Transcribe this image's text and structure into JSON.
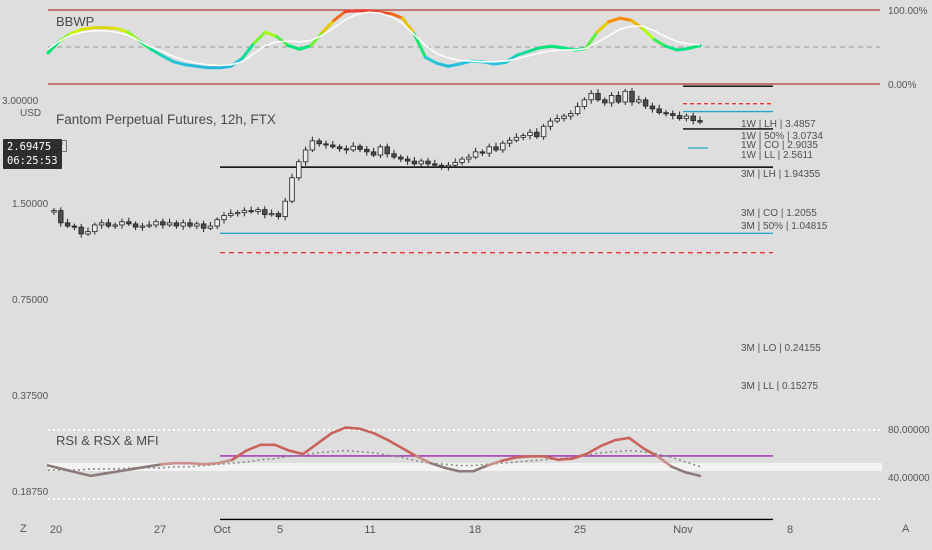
{
  "bbwp": {
    "title": "BBWP",
    "levels": [
      "100.00%",
      "0.00%"
    ]
  },
  "main": {
    "title": "Fantom Perpetual Futures, 12h, FTX",
    "currency": "USD",
    "last_price": "2.69475",
    "countdown": "06:25:53",
    "y_ticks": [
      "3.00000",
      "1.50000",
      "0.75000",
      "0.37500",
      "0.18750"
    ]
  },
  "osc": {
    "title": "RSI & RSX & MFI",
    "levels": [
      "80.00000",
      "40.00000"
    ]
  },
  "x_axis": {
    "labels": [
      "20",
      "27",
      "Oct",
      "5",
      "11",
      "18",
      "25",
      "Nov",
      "8"
    ]
  },
  "corner": {
    "left": "Z",
    "right": "A"
  },
  "level_labels": [
    {
      "text": "1W | LH | 3.4857",
      "color": "#000000"
    },
    {
      "text": "1W | 50% | 3.0734",
      "color": "#e53935"
    },
    {
      "text": "1W | CO | 2.9035",
      "color": "#26a6c9"
    },
    {
      "text": "1W | LL | 2.5611",
      "color": "#000000"
    },
    {
      "text": "3M | LH | 1.94355",
      "color": "#000000"
    },
    {
      "text": "3M | CO | 1.2055",
      "color": "#26a6c9"
    },
    {
      "text": "3M | 50% | 1.04815",
      "color": "#e53935"
    },
    {
      "text": "3M | LO | 0.24155",
      "color": "#9c27b0"
    },
    {
      "text": "3M | LL | 0.15275",
      "color": "#000000"
    }
  ],
  "chart_data": {
    "type": "candlestick",
    "title": "Fantom Perpetual Futures, 12h, FTX",
    "y_scale": "log",
    "y_ticks": [
      3.0,
      1.5,
      0.75,
      0.375,
      0.1875
    ],
    "x_labels": [
      "20",
      "27",
      "Oct",
      "5",
      "11",
      "18",
      "25",
      "Nov",
      "8"
    ],
    "close": [
      1.42,
      1.3,
      1.27,
      1.26,
      1.2,
      1.22,
      1.28,
      1.3,
      1.27,
      1.28,
      1.31,
      1.29,
      1.26,
      1.27,
      1.28,
      1.31,
      1.28,
      1.3,
      1.27,
      1.3,
      1.27,
      1.29,
      1.25,
      1.27,
      1.33,
      1.37,
      1.39,
      1.4,
      1.42,
      1.41,
      1.43,
      1.38,
      1.39,
      1.36,
      1.52,
      1.8,
      2.02,
      2.2,
      2.35,
      2.3,
      2.28,
      2.25,
      2.22,
      2.2,
      2.26,
      2.21,
      2.17,
      2.12,
      2.25,
      2.14,
      2.09,
      2.06,
      2.03,
      1.99,
      2.03,
      1.99,
      1.97,
      1.95,
      1.97,
      2.01,
      2.06,
      2.09,
      2.17,
      2.15,
      2.25,
      2.2,
      2.31,
      2.36,
      2.41,
      2.44,
      2.5,
      2.42,
      2.61,
      2.71,
      2.76,
      2.81,
      2.86,
      3.01,
      3.16,
      3.31,
      3.16,
      3.09,
      3.26,
      3.11,
      3.36,
      3.11,
      3.16,
      3.02,
      2.96,
      2.88,
      2.86,
      2.82,
      2.76,
      2.81,
      2.72,
      2.69
    ],
    "levels": [
      {
        "label": "1W | LH",
        "value": 3.4857
      },
      {
        "label": "1W | 50%",
        "value": 3.0734
      },
      {
        "label": "1W | CO",
        "value": 2.9035
      },
      {
        "label": "1W | LL",
        "value": 2.5611
      },
      {
        "label": "3M | LH",
        "value": 1.94355
      },
      {
        "label": "3M | CO",
        "value": 1.2055
      },
      {
        "label": "3M | 50%",
        "value": 1.04815
      },
      {
        "label": "3M | LO",
        "value": 0.24155
      },
      {
        "label": "3M | LL",
        "value": 0.15275
      }
    ],
    "bbwp": {
      "range": [
        0,
        100
      ],
      "values": [
        42,
        58,
        68,
        74,
        76,
        76,
        75,
        70,
        58,
        47,
        38,
        30,
        26,
        24,
        22,
        22,
        24,
        35,
        55,
        70,
        64,
        52,
        47,
        52,
        70,
        86,
        98,
        99,
        99,
        97,
        95,
        89,
        68,
        36,
        28,
        24,
        27,
        31,
        30,
        27,
        29,
        39,
        44,
        49,
        51,
        49,
        46,
        48,
        70,
        84,
        89,
        86,
        75,
        60,
        51,
        46,
        48,
        52
      ],
      "ma": [
        47,
        58,
        66,
        70,
        72,
        72,
        70,
        66,
        58,
        50,
        44,
        37,
        32,
        28,
        26,
        25,
        26,
        30,
        41,
        52,
        57,
        58,
        57,
        59,
        66,
        76,
        87,
        94,
        97,
        96,
        91,
        82,
        67,
        52,
        41,
        35,
        32,
        31,
        30,
        30,
        31,
        34,
        38,
        42,
        45,
        46,
        46,
        48,
        56,
        65,
        74,
        78,
        78,
        72,
        64,
        57,
        54,
        53
      ]
    },
    "oscillator": {
      "levels": [
        80,
        40
      ],
      "rsi": [
        50,
        47,
        44,
        41,
        43,
        45,
        47,
        49,
        51,
        52,
        52,
        51,
        52,
        55,
        63,
        68,
        68,
        63,
        60,
        69,
        78,
        83,
        82,
        78,
        72,
        65,
        58,
        52,
        48,
        45,
        45,
        50,
        54,
        57,
        58,
        58,
        55,
        56,
        60,
        67,
        72,
        74,
        65,
        58,
        49,
        44,
        41
      ],
      "signal": [
        46,
        46,
        46,
        47,
        47,
        47,
        48,
        48,
        48,
        49,
        49,
        50,
        51,
        52,
        53,
        55,
        56,
        58,
        59,
        61,
        62,
        63,
        62,
        61,
        59,
        57,
        54,
        52,
        51,
        50,
        50,
        51,
        52,
        53,
        54,
        55,
        56,
        57,
        59,
        61,
        62,
        63,
        62,
        60,
        57,
        53,
        49
      ]
    }
  }
}
